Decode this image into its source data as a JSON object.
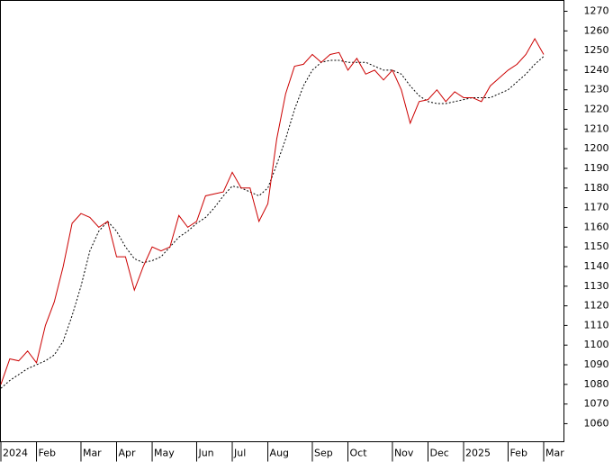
{
  "chart_data": {
    "type": "line",
    "categories": [
      "2024",
      null,
      null,
      null,
      "Feb",
      null,
      null,
      null,
      null,
      "Mar",
      null,
      null,
      null,
      "Apr",
      null,
      null,
      null,
      "May",
      null,
      null,
      null,
      null,
      "Jun",
      null,
      null,
      null,
      "Jul",
      null,
      null,
      null,
      "Aug",
      null,
      null,
      null,
      null,
      "Sep",
      null,
      null,
      null,
      "Oct",
      null,
      null,
      null,
      null,
      "Nov",
      null,
      null,
      null,
      "Dec",
      null,
      null,
      null,
      "2025",
      null,
      null,
      null,
      null,
      "Feb",
      null,
      null,
      null,
      "Mar"
    ],
    "series": [
      {
        "color": "#cc0000",
        "style": "solid",
        "values": [
          1080,
          1093,
          1092,
          1097,
          1091,
          1110,
          1122,
          1140,
          1162,
          1167,
          1165,
          1160,
          1163,
          1145,
          1145,
          1128,
          1140,
          1150,
          1148,
          1150,
          1166,
          1160,
          1163,
          1176,
          1177,
          1178,
          1188,
          1180,
          1180,
          1163,
          1172,
          1205,
          1228,
          1242,
          1243,
          1248,
          1244,
          1248,
          1249,
          1240,
          1246,
          1238,
          1240,
          1235,
          1240,
          1230,
          1213,
          1224,
          1225,
          1230,
          1224,
          1229,
          1226,
          1226,
          1224,
          1232,
          1236,
          1240,
          1243,
          1248,
          1256,
          1248
        ]
      },
      {
        "color": "#000000",
        "style": "dotted",
        "values": [
          1078,
          1082,
          1085,
          1088,
          1090,
          1092,
          1095,
          1102,
          1115,
          1130,
          1148,
          1158,
          1163,
          1158,
          1150,
          1144,
          1142,
          1143,
          1145,
          1150,
          1155,
          1158,
          1162,
          1165,
          1170,
          1176,
          1181,
          1180,
          1178,
          1176,
          1180,
          1192,
          1205,
          1220,
          1232,
          1240,
          1244,
          1245,
          1245,
          1244,
          1244,
          1244,
          1242,
          1240,
          1240,
          1238,
          1232,
          1227,
          1224,
          1223,
          1223,
          1224,
          1225,
          1226,
          1226,
          1226,
          1228,
          1230,
          1234,
          1238,
          1243,
          1247
        ]
      }
    ],
    "ylim": [
      1050.8,
      1275.5
    ],
    "yticks": [
      1060,
      1070,
      1080,
      1090,
      1100,
      1110,
      1120,
      1130,
      1140,
      1150,
      1160,
      1170,
      1180,
      1190,
      1200,
      1210,
      1220,
      1230,
      1240,
      1250,
      1260,
      1270
    ],
    "y_axis_side": "right",
    "grid": false
  }
}
